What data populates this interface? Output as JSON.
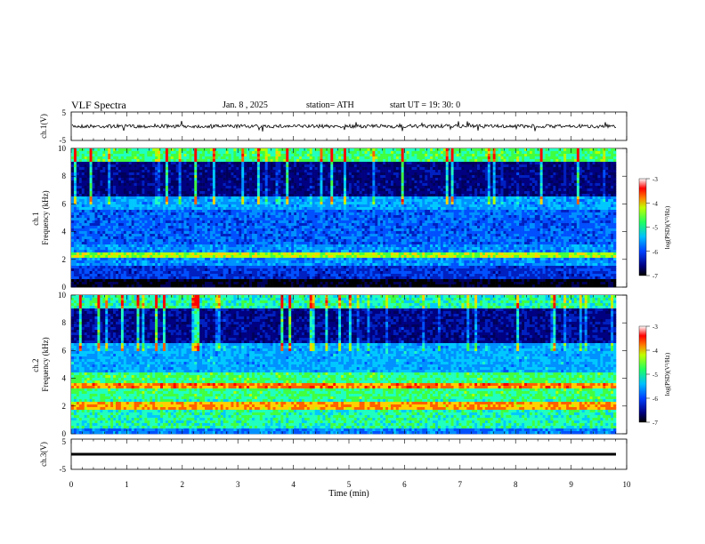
{
  "header": {
    "title": "VLF  Spectra",
    "date": "Jan. 8  , 2025",
    "station": "station= ATH",
    "start": "start  UT  =   19: 30: 0"
  },
  "chart_data": [
    {
      "type": "line",
      "ylabel": "ch.1(V)",
      "ylim": [
        -5,
        5
      ],
      "yticks": [
        "5",
        "-5"
      ],
      "xlim": [
        0,
        10
      ],
      "series_level": 0
    },
    {
      "type": "heatmap",
      "ylabel": "ch.1 Frequency (kHz)",
      "ylim": [
        0,
        10
      ],
      "yticks": [
        "0",
        "2",
        "4",
        "6",
        "8",
        "10"
      ],
      "colorbar": {
        "label": "log(PSD)(V²/Hz)",
        "range": [
          -7,
          -3
        ],
        "ticks": [
          "-3",
          "-4",
          "-5",
          "-6",
          "-7"
        ]
      }
    },
    {
      "type": "heatmap",
      "ylabel": "ch.2 Frequency (kHz)",
      "ylim": [
        0,
        10
      ],
      "yticks": [
        "0",
        "2",
        "4",
        "6",
        "8",
        "10"
      ],
      "colorbar": {
        "label": "log(PSD)(V²/Hz)",
        "range": [
          -7,
          -3
        ],
        "ticks": [
          "-3",
          "-4",
          "-5",
          "-6",
          "-7"
        ]
      }
    },
    {
      "type": "line",
      "ylabel": "ch.3(V)",
      "ylim": [
        -5,
        5
      ],
      "yticks": [
        "5",
        "-5"
      ],
      "xlabel": "Time  (min)",
      "xlim": [
        0,
        10
      ],
      "xticks": [
        "0",
        "1",
        "2",
        "3",
        "4",
        "5",
        "6",
        "7",
        "8",
        "9",
        "10"
      ]
    }
  ]
}
